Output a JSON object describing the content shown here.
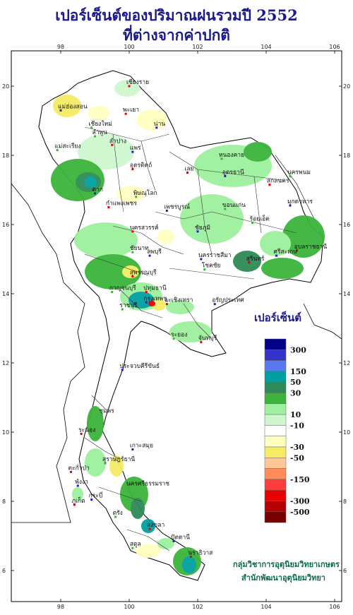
{
  "title_line1": "เปอร์เซ็นต์ของปริมาณฝนรวมปี  2552",
  "title_line2": "ที่ต่างจากค่าปกติ",
  "lon_ticks": [
    "98",
    "100",
    "102",
    "104",
    "106"
  ],
  "lat_ticks": [
    "20",
    "18",
    "16",
    "14",
    "12",
    "10",
    "8",
    "6"
  ],
  "legend": {
    "title": "เปอร์เซ็นต์",
    "colors": [
      "#00008b",
      "#3333cc",
      "#5a78f0",
      "#00a0a0",
      "#2e8b57",
      "#3cb43c",
      "#9ef09e",
      "#cff7cf",
      "#ffffff",
      "#ffffc0",
      "#f5eb64",
      "#ffc896",
      "#ff8c5a",
      "#ff3c3c",
      "#e60000",
      "#b40000",
      "#780000"
    ],
    "labels": [
      "300",
      "150",
      "50",
      "30",
      "10",
      "-10",
      "-30",
      "-50",
      "-150",
      "-300",
      "-500"
    ]
  },
  "places": [
    {
      "name": "เชียงราย",
      "lon": 100.0,
      "lat": 20.0
    },
    {
      "name": "แม่ฮ่องสอน",
      "lon": 98.0,
      "lat": 19.3
    },
    {
      "name": "เชียงใหม่",
      "lon": 98.9,
      "lat": 18.8
    },
    {
      "name": "พะเยา",
      "lon": 99.9,
      "lat": 19.2
    },
    {
      "name": "น่าน",
      "lon": 100.8,
      "lat": 18.8
    },
    {
      "name": "ลำพูน",
      "lon": 99.0,
      "lat": 18.55
    },
    {
      "name": "ลำปาง",
      "lon": 99.5,
      "lat": 18.3
    },
    {
      "name": "แพร่",
      "lon": 100.1,
      "lat": 18.1
    },
    {
      "name": "แม่สะเรียง",
      "lon": 97.9,
      "lat": 18.15
    },
    {
      "name": "อุตรดิตถ์",
      "lon": 100.1,
      "lat": 17.6
    },
    {
      "name": "ตาก",
      "lon": 99.0,
      "lat": 16.9
    },
    {
      "name": "พิษณุโลก",
      "lon": 100.2,
      "lat": 16.8
    },
    {
      "name": "กำแพงเพชร",
      "lon": 99.4,
      "lat": 16.5
    },
    {
      "name": "เพชรบูรณ์",
      "lon": 101.1,
      "lat": 16.4
    },
    {
      "name": "หนองคาย",
      "lon": 102.7,
      "lat": 17.9
    },
    {
      "name": "เลย",
      "lon": 101.7,
      "lat": 17.5
    },
    {
      "name": "อุดรธานี",
      "lon": 102.8,
      "lat": 17.4
    },
    {
      "name": "นครพนม",
      "lon": 104.7,
      "lat": 17.4
    },
    {
      "name": "สกลนคร",
      "lon": 104.1,
      "lat": 17.15
    },
    {
      "name": "มุกดาหาร",
      "lon": 104.7,
      "lat": 16.55
    },
    {
      "name": "ขอนแก่น",
      "lon": 102.8,
      "lat": 16.45
    },
    {
      "name": "นครสวรรค์",
      "lon": 100.1,
      "lat": 15.8
    },
    {
      "name": "ชัยภูมิ",
      "lon": 102.0,
      "lat": 15.8
    },
    {
      "name": "ร้อยเอ็ด",
      "lon": 103.6,
      "lat": 16.05
    },
    {
      "name": "อุบลราชธานี",
      "lon": 104.9,
      "lat": 15.25
    },
    {
      "name": "ลพบุรี",
      "lon": 100.6,
      "lat": 15.1
    },
    {
      "name": "ชัยนาท",
      "lon": 100.1,
      "lat": 15.2
    },
    {
      "name": "สุพรรณบุรี",
      "lon": 100.1,
      "lat": 14.5
    },
    {
      "name": "นครราชสีมา",
      "lon": 102.1,
      "lat": 15.0
    },
    {
      "name": "โชคชัย",
      "lon": 102.2,
      "lat": 14.7
    },
    {
      "name": "สุรินทร์",
      "lon": 103.5,
      "lat": 14.9
    },
    {
      "name": "ศรีสะเกษ",
      "lon": 104.3,
      "lat": 15.1
    },
    {
      "name": "กาญจนบุรี",
      "lon": 99.5,
      "lat": 14.05
    },
    {
      "name": "ปทุมธานี",
      "lon": 100.5,
      "lat": 14.05
    },
    {
      "name": "กรุงเทพฯ",
      "lon": 100.5,
      "lat": 13.75
    },
    {
      "name": "ราชบุรี",
      "lon": 99.8,
      "lat": 13.55
    },
    {
      "name": "ฉะเชิงเทรา",
      "lon": 101.1,
      "lat": 13.7
    },
    {
      "name": "อรัญประเทศ",
      "lon": 102.5,
      "lat": 13.7
    },
    {
      "name": "ระยอง",
      "lon": 101.3,
      "lat": 12.7
    },
    {
      "name": "จันทบุรี",
      "lon": 102.1,
      "lat": 12.6
    },
    {
      "name": "ประจวบคีรีขันธ์",
      "lon": 99.8,
      "lat": 11.8
    },
    {
      "name": "ชุมพร",
      "lon": 99.2,
      "lat": 10.5
    },
    {
      "name": "ระนอง",
      "lon": 98.6,
      "lat": 9.95
    },
    {
      "name": "เกาะสมุย",
      "lon": 100.1,
      "lat": 9.5
    },
    {
      "name": "สุราษฎร์ธานี",
      "lon": 99.3,
      "lat": 9.1
    },
    {
      "name": "ตะกั่วป่า",
      "lon": 98.3,
      "lat": 8.85
    },
    {
      "name": "พังงา",
      "lon": 98.5,
      "lat": 8.45
    },
    {
      "name": "นครศรีธรรมราช",
      "lon": 100.0,
      "lat": 8.4
    },
    {
      "name": "ภูเก็ต",
      "lon": 98.4,
      "lat": 7.9
    },
    {
      "name": "กระบี่",
      "lon": 98.9,
      "lat": 8.05
    },
    {
      "name": "ตรัง",
      "lon": 99.6,
      "lat": 7.55
    },
    {
      "name": "สงขลา",
      "lon": 100.6,
      "lat": 7.2
    },
    {
      "name": "ปัตตานี",
      "lon": 101.3,
      "lat": 6.85
    },
    {
      "name": "สตูล",
      "lon": 100.1,
      "lat": 6.65
    },
    {
      "name": "นราธิวาส",
      "lon": 101.8,
      "lat": 6.4
    }
  ],
  "credit_line1": "กลุ่มวิชาการอุตุนิยมวิทยาเกษตร",
  "credit_line2": "สำนักพัฒนาอุตุนิยมวิทยา"
}
